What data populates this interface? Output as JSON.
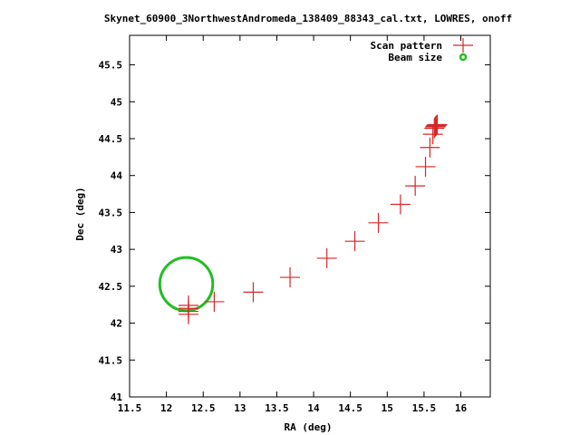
{
  "chart_data": {
    "type": "scatter",
    "title": "Skynet_60900_3NorthwestAndromeda_138409_88343_cal.txt, LOWRES, onoff",
    "xlabel": "RA (deg)",
    "ylabel": "Dec (deg)",
    "xlim": [
      11.5,
      16.4
    ],
    "ylim": [
      41,
      45.9
    ],
    "xticks": [
      "11.5",
      "12",
      "12.5",
      "13",
      "13.5",
      "14",
      "14.5",
      "15",
      "15.5",
      "16"
    ],
    "yticks": [
      "41",
      "41.5",
      "42",
      "42.5",
      "43",
      "43.5",
      "44",
      "44.5",
      "45",
      "45.5"
    ],
    "legend_position": "top-right",
    "series": [
      {
        "name": "Scan pattern",
        "marker": "plus",
        "color": "#d62728",
        "points": [
          [
            12.3,
            42.12
          ],
          [
            12.3,
            42.16
          ],
          [
            12.3,
            42.2
          ],
          [
            12.3,
            42.24
          ],
          [
            12.65,
            42.29
          ],
          [
            13.18,
            42.42
          ],
          [
            13.68,
            42.62
          ],
          [
            14.18,
            42.88
          ],
          [
            14.56,
            43.11
          ],
          [
            14.88,
            43.36
          ],
          [
            15.18,
            43.61
          ],
          [
            15.38,
            43.86
          ],
          [
            15.52,
            44.12
          ],
          [
            15.58,
            44.38
          ],
          [
            15.62,
            44.56
          ],
          [
            15.64,
            44.64
          ],
          [
            15.65,
            44.66
          ],
          [
            15.66,
            44.67
          ],
          [
            15.67,
            44.68
          ],
          [
            15.68,
            44.69
          ]
        ]
      },
      {
        "name": "Beam size",
        "marker": "circle",
        "color": "#1fbf1f",
        "center": [
          12.27,
          42.53
        ],
        "radius_deg": 0.36
      }
    ]
  }
}
